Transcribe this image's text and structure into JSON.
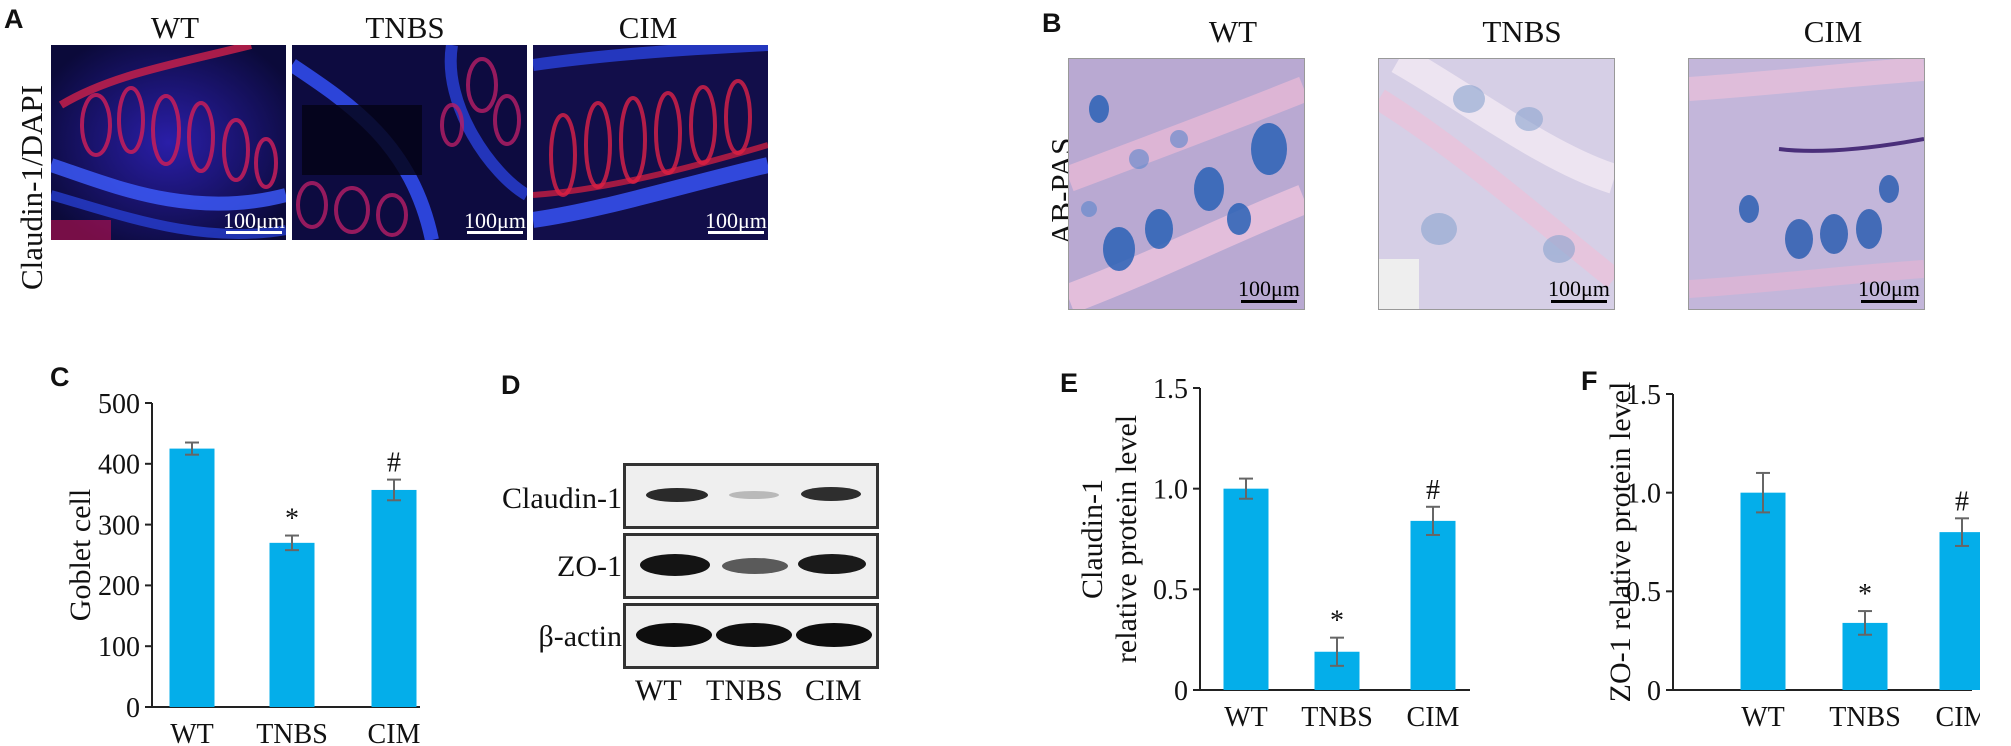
{
  "panels": {
    "A": {
      "letter": "A",
      "row_label": "Claudin-1/DAPI",
      "columns": [
        "WT",
        "TNBS",
        "CIM"
      ],
      "scale_bar": "100μm"
    },
    "B": {
      "letter": "B",
      "row_label": "AB-PAS",
      "columns": [
        "WT",
        "TNBS",
        "CIM"
      ],
      "scale_bar": "100μm"
    },
    "D": {
      "letter": "D",
      "rows": [
        "Claudin-1",
        "ZO-1",
        "β-actin"
      ],
      "lanes": [
        "WT",
        "TNBS",
        "CIM"
      ]
    }
  },
  "chart_data": [
    {
      "panel": "C",
      "type": "bar",
      "categories": [
        "WT",
        "TNBS",
        "CIM"
      ],
      "values": [
        425,
        270,
        357
      ],
      "errors": [
        10,
        12,
        17
      ],
      "annotations": [
        "",
        "*",
        "#"
      ],
      "ylabel": "Goblet cell",
      "ylim": [
        0,
        500
      ],
      "yticks": [
        "0",
        "100",
        "200",
        "300",
        "400",
        "500"
      ],
      "bar_color": "#04aeea"
    },
    {
      "panel": "E",
      "type": "bar",
      "categories": [
        "WT",
        "TNBS",
        "CIM"
      ],
      "values": [
        1.0,
        0.19,
        0.84
      ],
      "errors": [
        0.05,
        0.07,
        0.07
      ],
      "annotations": [
        "",
        "*",
        "#"
      ],
      "ylabel_lines": [
        "Claudin-1",
        "relative protein level"
      ],
      "ylim": [
        0,
        1.5
      ],
      "yticks": [
        "0",
        "0.5",
        "1.0",
        "1.5"
      ],
      "bar_color": "#04aeea"
    },
    {
      "panel": "F",
      "type": "bar",
      "categories": [
        "WT",
        "TNBS",
        "CIM"
      ],
      "values": [
        1.0,
        0.34,
        0.8
      ],
      "errors": [
        0.1,
        0.06,
        0.07
      ],
      "annotations": [
        "",
        "*",
        "#"
      ],
      "ylabel": "ZO-1 relative protein level",
      "ylim": [
        0,
        1.5
      ],
      "yticks": [
        "0",
        "0.5",
        "1.0",
        "1.5"
      ],
      "bar_color": "#04aeea"
    }
  ]
}
